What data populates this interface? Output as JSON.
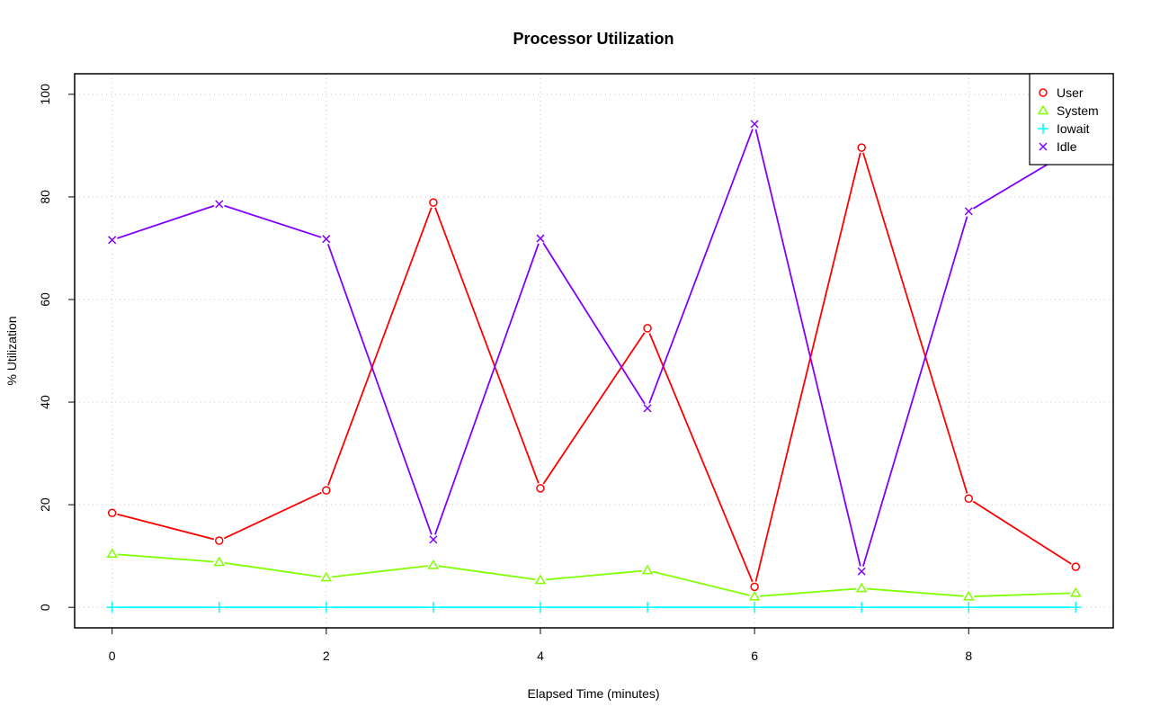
{
  "chart_data": {
    "type": "line",
    "title": "Processor Utilization",
    "xlabel": "Elapsed Time (minutes)",
    "ylabel": "% Utilization",
    "x": [
      0,
      1,
      2,
      3,
      4,
      5,
      6,
      7,
      8,
      9
    ],
    "xlim": [
      -0.35,
      9.35
    ],
    "ylim": [
      -4,
      104
    ],
    "xticks": [
      0,
      2,
      4,
      6,
      8
    ],
    "yticks": [
      0,
      20,
      40,
      60,
      80,
      100
    ],
    "grid": true,
    "legend_position": "top-right",
    "series": [
      {
        "name": "User",
        "color": "#ff0000",
        "marker": "circle",
        "values": [
          18.4,
          13.0,
          22.8,
          78.9,
          23.2,
          54.4,
          4.0,
          89.6,
          21.2,
          7.9
        ]
      },
      {
        "name": "System",
        "color": "#80ff00",
        "marker": "triangle",
        "values": [
          10.4,
          8.8,
          5.8,
          8.2,
          5.3,
          7.2,
          2.1,
          3.7,
          2.1,
          2.8
        ]
      },
      {
        "name": "Iowait",
        "color": "#00ffff",
        "marker": "plus",
        "values": [
          0,
          0,
          0,
          0,
          0,
          0,
          0,
          0,
          0,
          0
        ]
      },
      {
        "name": "Idle",
        "color": "#8000ff",
        "marker": "cross",
        "values": [
          71.6,
          78.6,
          71.8,
          13.2,
          71.9,
          38.8,
          94.2,
          7.0,
          77.2,
          89.6
        ]
      }
    ]
  }
}
